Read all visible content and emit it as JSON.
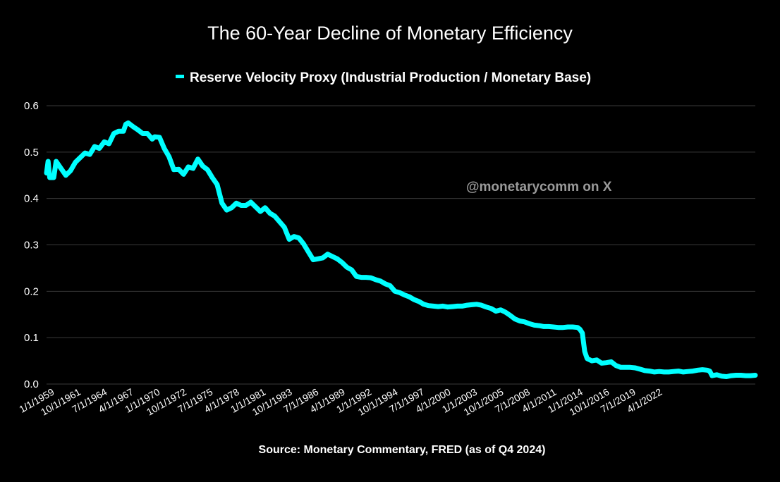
{
  "chart_data": {
    "type": "line",
    "title": "The 60-Year Decline of Monetary Efficiency",
    "series": [
      {
        "name": "Reserve Velocity Proxy (Industrial Production / Monetary Base)",
        "color": "#00ffff",
        "points": [
          [
            "1959-01-01",
            0.455
          ],
          [
            "1959-03-01",
            0.48
          ],
          [
            "1959-05-01",
            0.445
          ],
          [
            "1959-10-01",
            0.445
          ],
          [
            "1960-01-01",
            0.48
          ],
          [
            "1960-07-01",
            0.465
          ],
          [
            "1961-01-01",
            0.45
          ],
          [
            "1961-07-01",
            0.46
          ],
          [
            "1962-01-01",
            0.478
          ],
          [
            "1962-07-01",
            0.488
          ],
          [
            "1963-01-01",
            0.498
          ],
          [
            "1963-07-01",
            0.495
          ],
          [
            "1964-01-01",
            0.512
          ],
          [
            "1964-07-01",
            0.508
          ],
          [
            "1965-01-01",
            0.522
          ],
          [
            "1965-07-01",
            0.518
          ],
          [
            "1966-01-01",
            0.54
          ],
          [
            "1966-07-01",
            0.545
          ],
          [
            "1967-01-01",
            0.545
          ],
          [
            "1967-04-01",
            0.56
          ],
          [
            "1967-07-01",
            0.563
          ],
          [
            "1968-01-01",
            0.555
          ],
          [
            "1968-07-01",
            0.548
          ],
          [
            "1969-01-01",
            0.54
          ],
          [
            "1969-07-01",
            0.54
          ],
          [
            "1970-01-01",
            0.528
          ],
          [
            "1970-04-01",
            0.533
          ],
          [
            "1970-10-01",
            0.532
          ],
          [
            "1971-04-01",
            0.508
          ],
          [
            "1971-10-01",
            0.49
          ],
          [
            "1972-04-01",
            0.462
          ],
          [
            "1972-10-01",
            0.463
          ],
          [
            "1973-04-01",
            0.452
          ],
          [
            "1973-10-01",
            0.468
          ],
          [
            "1974-04-01",
            0.465
          ],
          [
            "1974-10-01",
            0.485
          ],
          [
            "1975-04-01",
            0.47
          ],
          [
            "1975-10-01",
            0.462
          ],
          [
            "1976-04-01",
            0.445
          ],
          [
            "1976-10-01",
            0.43
          ],
          [
            "1977-04-01",
            0.39
          ],
          [
            "1977-10-01",
            0.375
          ],
          [
            "1978-04-01",
            0.38
          ],
          [
            "1978-10-01",
            0.39
          ],
          [
            "1979-04-01",
            0.385
          ],
          [
            "1979-10-01",
            0.385
          ],
          [
            "1980-04-01",
            0.392
          ],
          [
            "1980-10-01",
            0.382
          ],
          [
            "1981-04-01",
            0.372
          ],
          [
            "1981-10-01",
            0.38
          ],
          [
            "1982-04-01",
            0.368
          ],
          [
            "1982-10-01",
            0.362
          ],
          [
            "1983-04-01",
            0.35
          ],
          [
            "1983-10-01",
            0.338
          ],
          [
            "1984-04-01",
            0.312
          ],
          [
            "1984-10-01",
            0.318
          ],
          [
            "1985-04-01",
            0.315
          ],
          [
            "1985-10-01",
            0.302
          ],
          [
            "1986-04-01",
            0.285
          ],
          [
            "1986-10-01",
            0.268
          ],
          [
            "1987-04-01",
            0.27
          ],
          [
            "1987-10-01",
            0.272
          ],
          [
            "1988-04-01",
            0.28
          ],
          [
            "1988-10-01",
            0.275
          ],
          [
            "1989-04-01",
            0.27
          ],
          [
            "1989-10-01",
            0.262
          ],
          [
            "1990-04-01",
            0.252
          ],
          [
            "1990-10-01",
            0.246
          ],
          [
            "1991-04-01",
            0.232
          ],
          [
            "1991-10-01",
            0.23
          ],
          [
            "1992-04-01",
            0.23
          ],
          [
            "1992-10-01",
            0.229
          ],
          [
            "1993-04-01",
            0.225
          ],
          [
            "1993-10-01",
            0.222
          ],
          [
            "1994-04-01",
            0.216
          ],
          [
            "1994-10-01",
            0.212
          ],
          [
            "1995-04-01",
            0.2
          ],
          [
            "1995-10-01",
            0.197
          ],
          [
            "1996-04-01",
            0.192
          ],
          [
            "1996-10-01",
            0.188
          ],
          [
            "1997-04-01",
            0.182
          ],
          [
            "1997-10-01",
            0.178
          ],
          [
            "1998-04-01",
            0.172
          ],
          [
            "1998-10-01",
            0.169
          ],
          [
            "1999-04-01",
            0.168
          ],
          [
            "1999-10-01",
            0.167
          ],
          [
            "2000-04-01",
            0.168
          ],
          [
            "2000-10-01",
            0.166
          ],
          [
            "2001-04-01",
            0.167
          ],
          [
            "2001-10-01",
            0.168
          ],
          [
            "2002-04-01",
            0.168
          ],
          [
            "2002-10-01",
            0.17
          ],
          [
            "2003-04-01",
            0.171
          ],
          [
            "2003-10-01",
            0.172
          ],
          [
            "2004-04-01",
            0.17
          ],
          [
            "2004-10-01",
            0.166
          ],
          [
            "2005-04-01",
            0.163
          ],
          [
            "2005-10-01",
            0.157
          ],
          [
            "2006-04-01",
            0.16
          ],
          [
            "2006-10-01",
            0.155
          ],
          [
            "2007-04-01",
            0.148
          ],
          [
            "2007-10-01",
            0.14
          ],
          [
            "2008-04-01",
            0.136
          ],
          [
            "2008-10-01",
            0.134
          ],
          [
            "2009-04-01",
            0.13
          ],
          [
            "2009-10-01",
            0.127
          ],
          [
            "2010-04-01",
            0.126
          ],
          [
            "2010-10-01",
            0.124
          ],
          [
            "2011-04-01",
            0.124
          ],
          [
            "2011-10-01",
            0.123
          ],
          [
            "2012-04-01",
            0.122
          ],
          [
            "2012-10-01",
            0.122
          ],
          [
            "2013-04-01",
            0.123
          ],
          [
            "2013-10-01",
            0.123
          ],
          [
            "2014-04-01",
            0.122
          ],
          [
            "2014-07-01",
            0.118
          ],
          [
            "2014-10-01",
            0.11
          ],
          [
            "2015-01-01",
            0.07
          ],
          [
            "2015-04-01",
            0.055
          ],
          [
            "2015-10-01",
            0.05
          ],
          [
            "2016-04-01",
            0.052
          ],
          [
            "2016-10-01",
            0.045
          ],
          [
            "2017-04-01",
            0.046
          ],
          [
            "2017-10-01",
            0.048
          ],
          [
            "2018-04-01",
            0.04
          ],
          [
            "2018-10-01",
            0.036
          ],
          [
            "2019-04-01",
            0.036
          ],
          [
            "2019-10-01",
            0.036
          ],
          [
            "2020-04-01",
            0.035
          ],
          [
            "2020-10-01",
            0.032
          ],
          [
            "2021-04-01",
            0.029
          ],
          [
            "2021-10-01",
            0.028
          ],
          [
            "2022-04-01",
            0.026
          ],
          [
            "2022-10-01",
            0.027
          ],
          [
            "2023-04-01",
            0.026
          ],
          [
            "2023-10-01",
            0.026
          ],
          [
            "2024-04-01",
            0.027
          ],
          [
            "2024-10-01",
            0.028
          ],
          [
            "2025-04-01",
            0.026
          ],
          [
            "2025-10-01",
            0.027
          ],
          [
            "2026-04-01",
            0.028
          ],
          [
            "2026-10-01",
            0.03
          ],
          [
            "2027-04-01",
            0.031
          ],
          [
            "2027-10-01",
            0.03
          ],
          [
            "2028-01-01",
            0.028
          ],
          [
            "2028-04-01",
            0.018
          ],
          [
            "2028-10-01",
            0.02
          ],
          [
            "2029-04-01",
            0.017
          ],
          [
            "2029-10-01",
            0.016
          ],
          [
            "2030-04-01",
            0.018
          ],
          [
            "2030-10-01",
            0.019
          ],
          [
            "2031-04-01",
            0.019
          ],
          [
            "2031-10-01",
            0.018
          ],
          [
            "2032-04-01",
            0.018
          ],
          [
            "2032-10-01",
            0.019
          ]
        ]
      }
    ],
    "x_tick_labels": [
      "1/1/1959",
      "10/1/1961",
      "7/1/1964",
      "4/1/1967",
      "1/1/1970",
      "10/1/1972",
      "7/1/1975",
      "4/1/1978",
      "1/1/1981",
      "10/1/1983",
      "7/1/1986",
      "4/1/1989",
      "1/1/1992",
      "10/1/1994",
      "7/1/1997",
      "4/1/2000",
      "1/1/2003",
      "10/1/2005",
      "7/1/2008",
      "4/1/2011",
      "1/1/2014",
      "10/1/2016",
      "7/1/2019",
      "4/1/2022"
    ],
    "y_tick_labels": [
      "0.0",
      "0.1",
      "0.2",
      "0.3",
      "0.4",
      "0.5",
      "0.6"
    ],
    "ylim": [
      0,
      0.6
    ],
    "xlim": [
      "1959-01-01",
      "2032-10-01"
    ],
    "grid": "horizontal",
    "legend_position": "top-center",
    "background": "#000000",
    "watermark": "@monetarycomm on X",
    "source": "Source: Monetary Commentary, FRED (as of Q4 2024)"
  }
}
